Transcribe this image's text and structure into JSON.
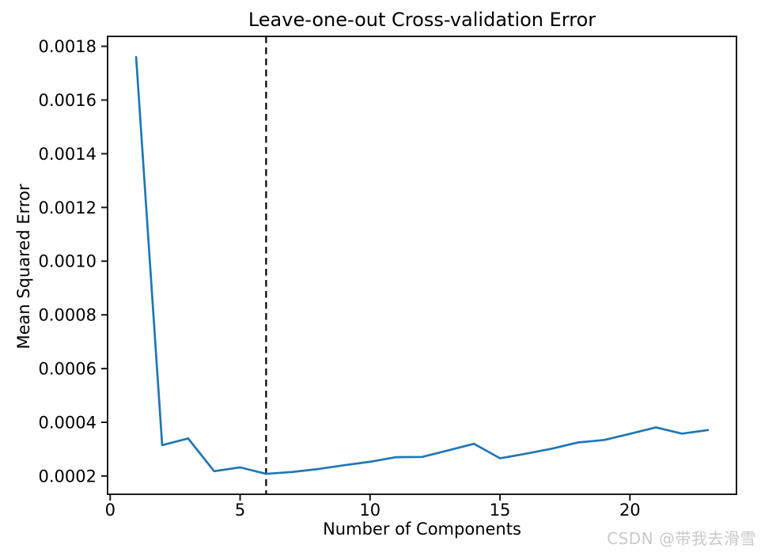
{
  "chart_data": {
    "type": "line",
    "title": "Leave-one-out Cross-validation Error",
    "xlabel": "Number of Components",
    "ylabel": "Mean Squared Error",
    "x": [
      1,
      2,
      3,
      4,
      5,
      6,
      7,
      8,
      9,
      10,
      11,
      12,
      13,
      14,
      15,
      16,
      17,
      18,
      19,
      20,
      21,
      22,
      23
    ],
    "y": [
      0.00176,
      0.000315,
      0.00034,
      0.000218,
      0.000232,
      0.000208,
      0.000215,
      0.000226,
      0.00024,
      0.000253,
      0.00027,
      0.000271,
      0.000295,
      0.00032,
      0.000266,
      0.000283,
      0.000302,
      0.000325,
      0.000334,
      0.000357,
      0.000381,
      0.000358,
      0.000371
    ],
    "xlim": [
      -0.1,
      24.1
    ],
    "ylim": [
      0.000132,
      0.001837
    ],
    "xticks": [
      0,
      5,
      10,
      15,
      20
    ],
    "yticks": [
      "0.0002",
      "0.0004",
      "0.0006",
      "0.0008",
      "0.0010",
      "0.0012",
      "0.0014",
      "0.0016",
      "0.0018"
    ],
    "grid": false,
    "legend_position": "none",
    "line_color": "#1f77b4",
    "axis_color": "#1a1a1a",
    "vline": {
      "x": 6,
      "style": "dashed",
      "color": "#000000"
    }
  },
  "watermark": {
    "text": "CSDN @带我去滑雪",
    "color": "#c9c9c9"
  }
}
